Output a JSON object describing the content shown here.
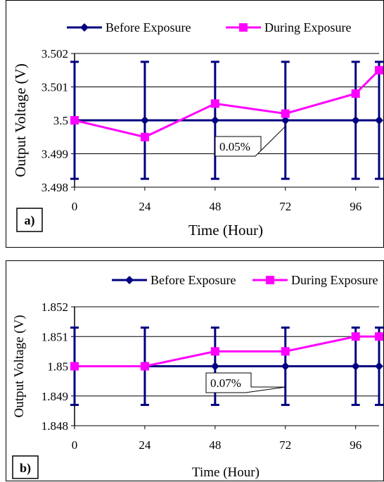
{
  "colors": {
    "before": "#000080",
    "during": "#ff00ff",
    "grid": "#000000"
  },
  "chart_data": [
    {
      "type": "line",
      "panel_label": "a)",
      "xlabel": "Time (Hour)",
      "ylabel": "Output Voltage (V)",
      "x_ticks": [
        "0",
        "24",
        "48",
        "72",
        "96"
      ],
      "y_ticks": [
        "3.498",
        "3.499",
        "3.5",
        "3.501",
        "3.502"
      ],
      "ylim": [
        3.498,
        3.502
      ],
      "xlim": [
        0,
        104
      ],
      "grid": true,
      "legend_position": "top",
      "series": [
        {
          "name": "Before Exposure",
          "marker": "diamond",
          "x": [
            0,
            24,
            48,
            72,
            96,
            104
          ],
          "y": [
            3.5,
            3.5,
            3.5,
            3.5,
            3.5,
            3.5
          ],
          "error": 0.00175
        },
        {
          "name": "During Exposure",
          "marker": "square",
          "x": [
            0,
            24,
            48,
            72,
            96,
            104
          ],
          "y": [
            3.5,
            3.4995,
            3.5005,
            3.5002,
            3.5008,
            3.5015
          ]
        }
      ],
      "annotation": {
        "text": "0.05%"
      }
    },
    {
      "type": "line",
      "panel_label": "b)",
      "xlabel": "Time (Hour)",
      "ylabel": "Output Voltage (V)",
      "x_ticks": [
        "0",
        "24",
        "48",
        "72",
        "96"
      ],
      "y_ticks": [
        "1.848",
        "1.849",
        "1.85",
        "1.851",
        "1.852"
      ],
      "ylim": [
        1.848,
        1.852
      ],
      "xlim": [
        0,
        104
      ],
      "grid": true,
      "legend_position": "top",
      "series": [
        {
          "name": "Before Exposure",
          "marker": "diamond",
          "x": [
            0,
            24,
            48,
            72,
            96,
            104
          ],
          "y": [
            1.85,
            1.85,
            1.85,
            1.85,
            1.85,
            1.85
          ],
          "error": 0.0013
        },
        {
          "name": "During Exposure",
          "marker": "square",
          "x": [
            0,
            24,
            48,
            72,
            96,
            104
          ],
          "y": [
            1.85,
            1.85,
            1.8505,
            1.8505,
            1.851,
            1.851
          ]
        }
      ],
      "annotation": {
        "text": "0.07%"
      }
    }
  ]
}
